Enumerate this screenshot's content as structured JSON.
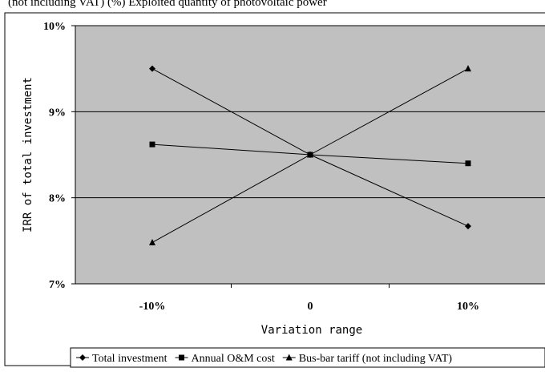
{
  "top_caption": "(not including VAT) (%) Exploited quantity of photovoltaic power",
  "chart_data": {
    "type": "line",
    "categories": [
      "-10%",
      "0",
      "10%"
    ],
    "xlabel": "Variation range",
    "ylabel": "IRR of total investment",
    "ylim": [
      7,
      10
    ],
    "y_ticks": [
      7,
      8,
      9,
      10
    ],
    "y_tick_labels": [
      "7%",
      "8%",
      "9%",
      "10%"
    ],
    "grid": true,
    "legend_placement": "bottom",
    "plot_background": "#c0c0c0",
    "series": [
      {
        "name": "Total investment",
        "marker": "diamond",
        "values": [
          9.5,
          8.5,
          7.67
        ]
      },
      {
        "name": "Annual O&M cost",
        "marker": "square",
        "values": [
          8.62,
          8.5,
          8.4
        ]
      },
      {
        "name": "Bus-bar tariff (not including VAT)",
        "marker": "triangle",
        "values": [
          7.48,
          8.5,
          9.5
        ]
      }
    ]
  }
}
